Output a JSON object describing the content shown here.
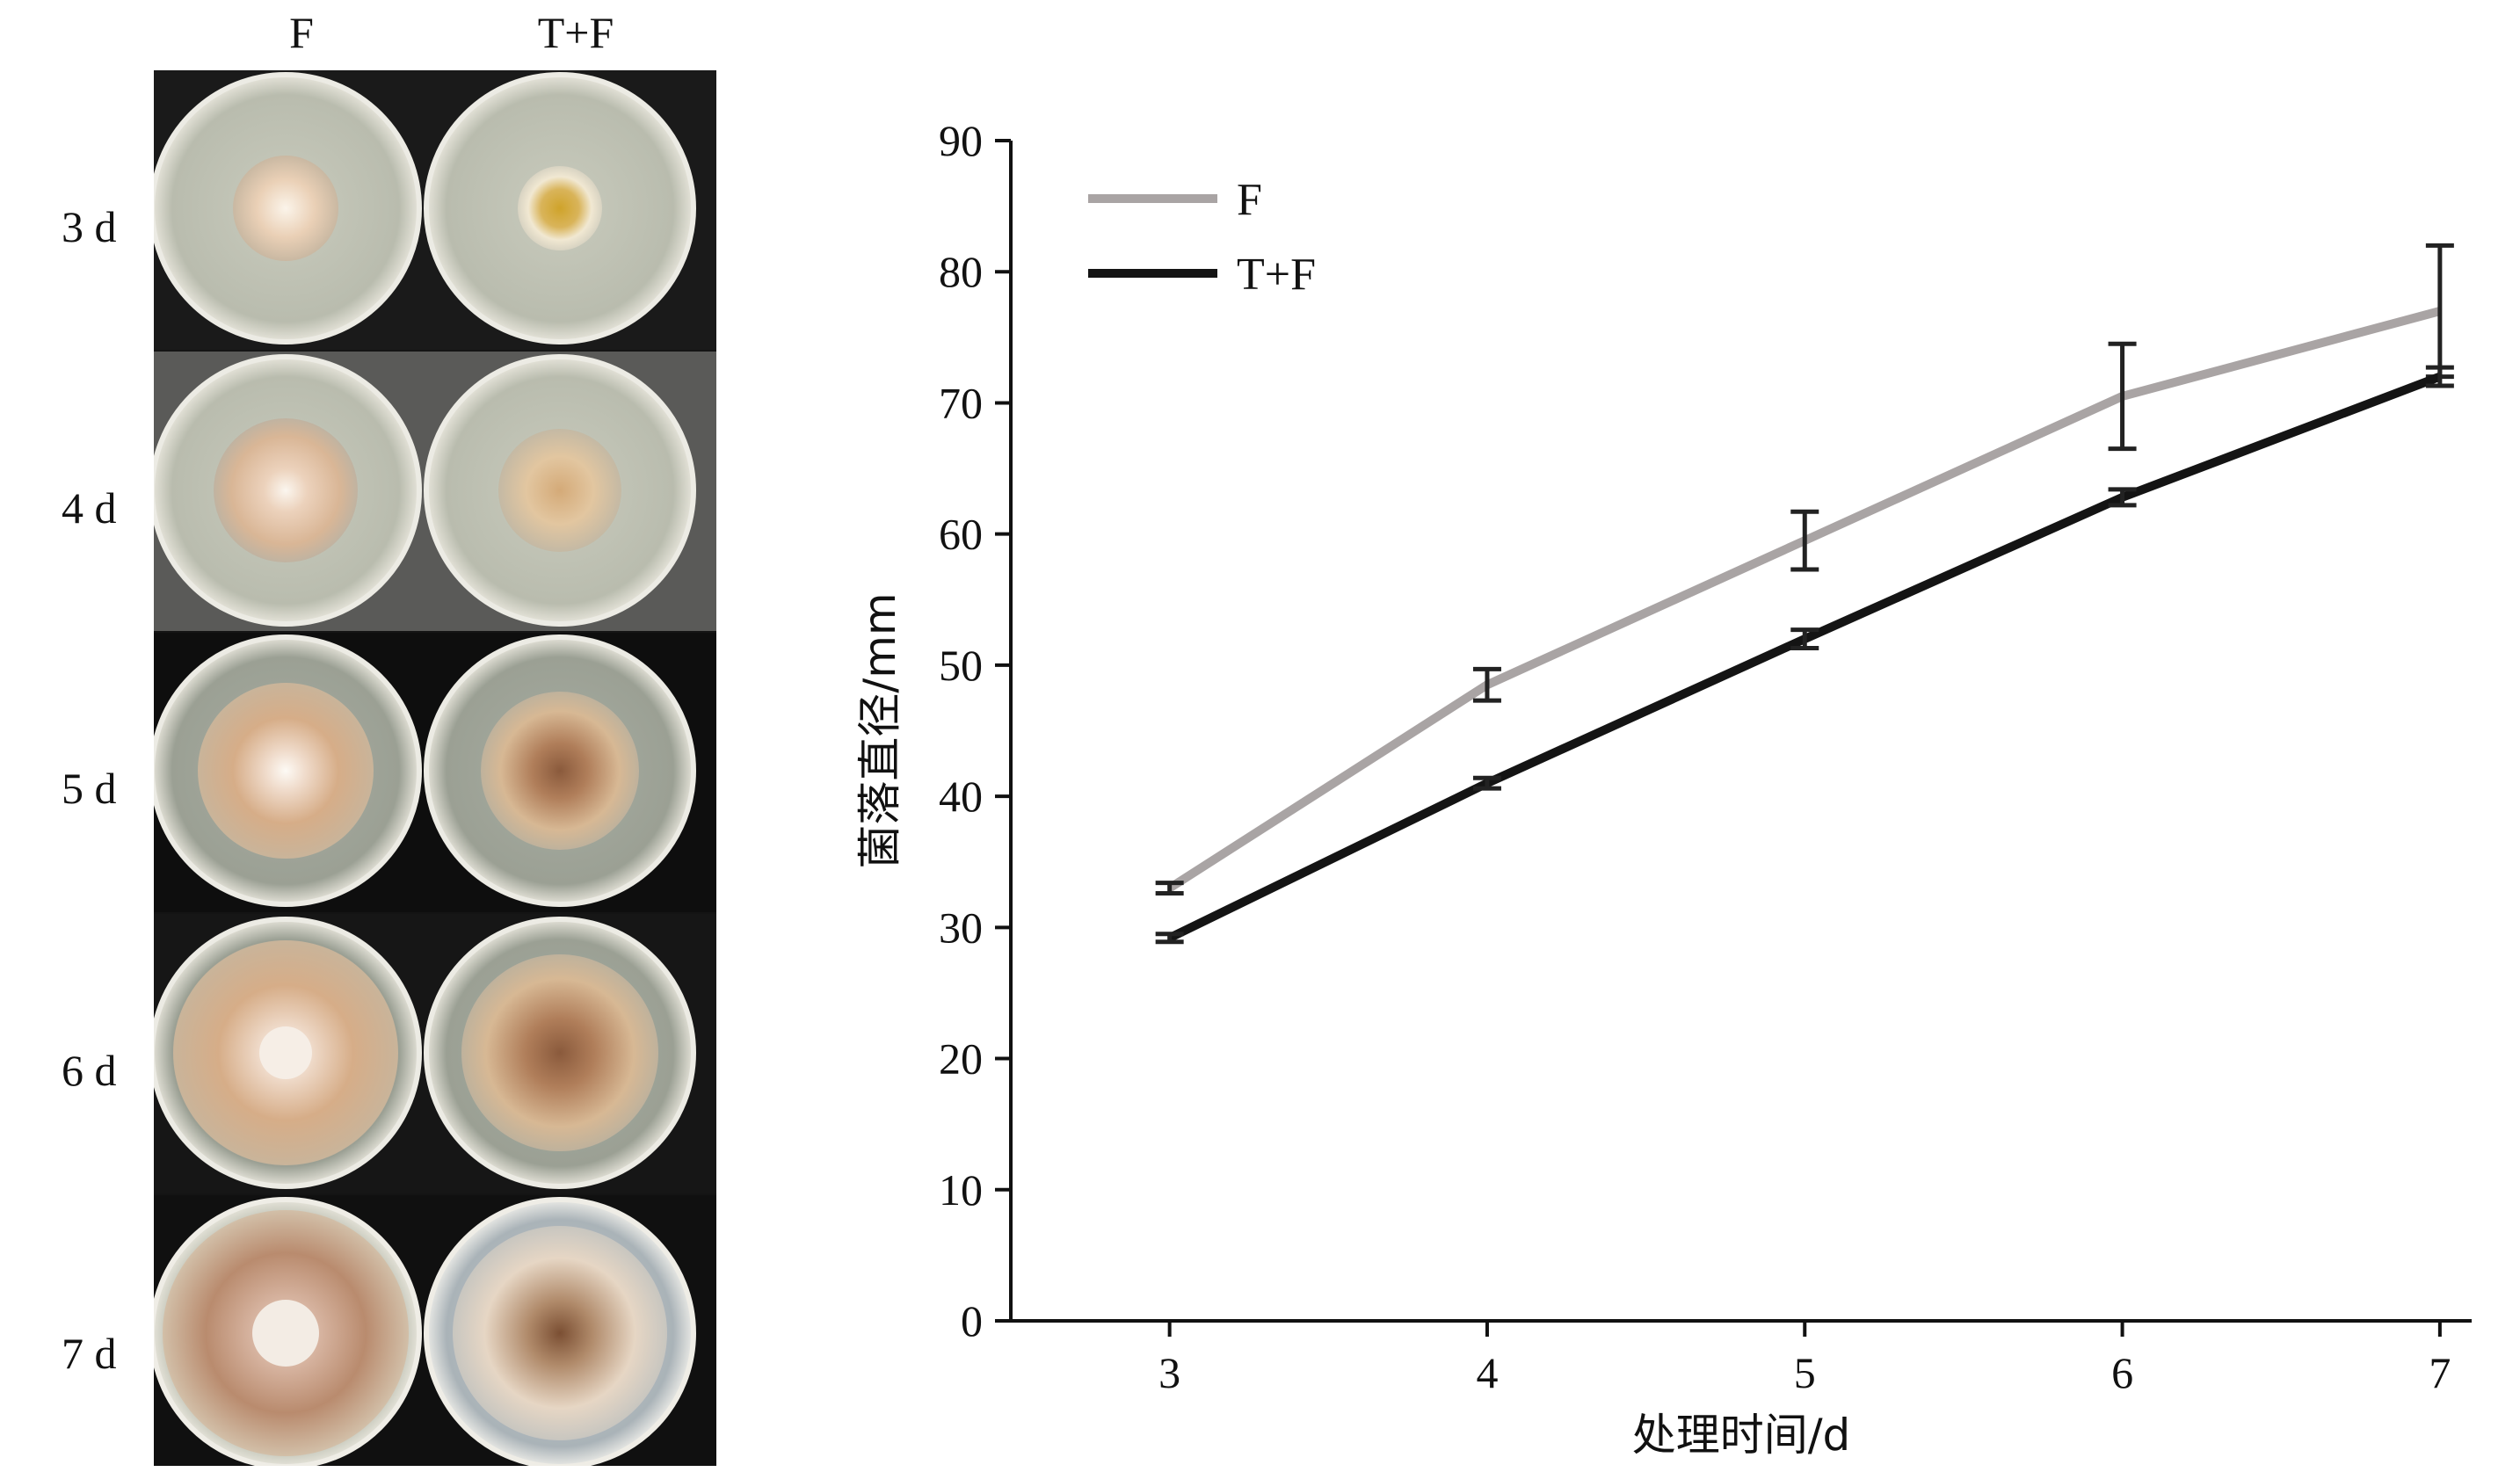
{
  "photo_panel": {
    "column_labels": [
      "F",
      "T+F"
    ],
    "row_labels": [
      "3 d",
      "4 d",
      "5 d",
      "6 d",
      "7 d"
    ]
  },
  "chart_data": {
    "type": "line",
    "x": [
      3,
      4,
      5,
      6,
      7
    ],
    "xlabel": "处理时间/d",
    "ylabel": "菌落直径/mm",
    "xlim": [
      2.5,
      7.1
    ],
    "ylim": [
      0,
      90
    ],
    "x_ticks": [
      3,
      4,
      5,
      6,
      7
    ],
    "y_ticks": [
      0,
      10,
      20,
      30,
      40,
      50,
      60,
      70,
      80,
      90
    ],
    "grid": false,
    "legend_position": "top-left",
    "series": [
      {
        "name": "F",
        "values": [
          33,
          48.5,
          59.5,
          70.5,
          77
        ],
        "error": [
          0.4,
          1.2,
          2.2,
          4,
          5
        ],
        "color": "#a9a4a4"
      },
      {
        "name": "T+F",
        "values": [
          29.2,
          41,
          52,
          62.8,
          72
        ],
        "error": [
          0.3,
          0.4,
          0.7,
          0.6,
          0.7
        ],
        "color": "#141414"
      }
    ]
  }
}
